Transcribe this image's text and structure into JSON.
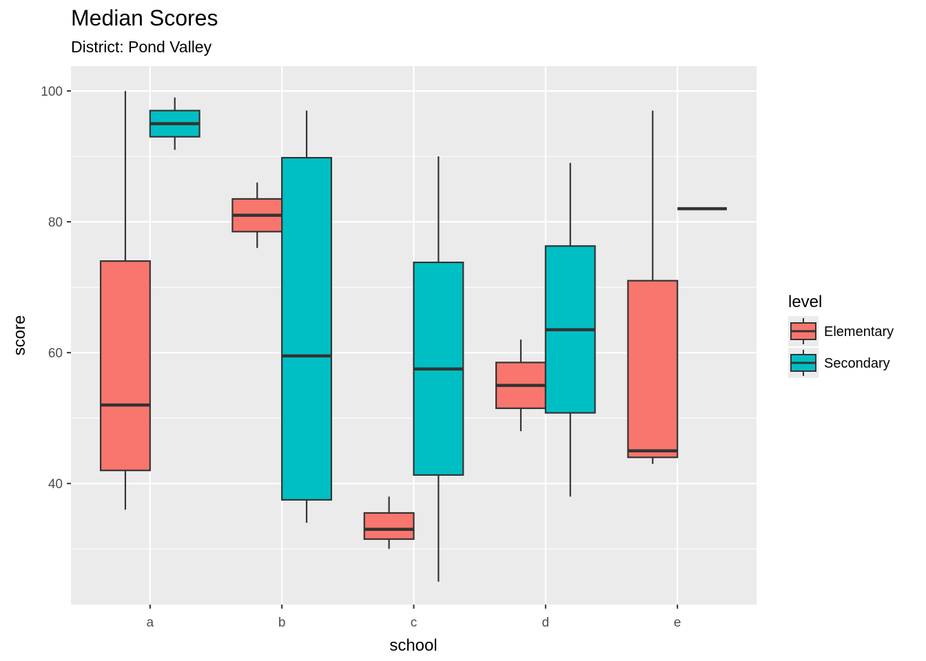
{
  "chart_data": {
    "type": "boxplot",
    "title": "Median Scores",
    "subtitle": "District: Pond Valley",
    "xlabel": "school",
    "ylabel": "score",
    "categories": [
      "a",
      "b",
      "c",
      "d",
      "e"
    ],
    "ylim": [
      21.5,
      103.8
    ],
    "yticks": [
      40,
      60,
      80,
      100
    ],
    "grid": true,
    "legend": {
      "title": "level",
      "position": "right"
    },
    "series": [
      {
        "name": "Elementary",
        "color": "#F8766D",
        "boxes": [
          {
            "category": "a",
            "min": 36,
            "q1": 42,
            "median": 52,
            "q3": 74,
            "max": 100
          },
          {
            "category": "b",
            "min": 76,
            "q1": 78.5,
            "median": 81,
            "q3": 83.5,
            "max": 86
          },
          {
            "category": "c",
            "min": 30,
            "q1": 31.5,
            "median": 33,
            "q3": 35.5,
            "max": 38
          },
          {
            "category": "d",
            "min": 48,
            "q1": 51.5,
            "median": 55,
            "q3": 58.5,
            "max": 62
          },
          {
            "category": "e",
            "min": 43,
            "q1": 44,
            "median": 45,
            "q3": 71,
            "max": 97
          }
        ]
      },
      {
        "name": "Secondary",
        "color": "#00BFC4",
        "boxes": [
          {
            "category": "a",
            "min": 91,
            "q1": 93,
            "median": 95,
            "q3": 97,
            "max": 99
          },
          {
            "category": "b",
            "min": 34,
            "q1": 37.5,
            "median": 59.5,
            "q3": 89.8,
            "max": 97
          },
          {
            "category": "c",
            "min": 25,
            "q1": 41.3,
            "median": 57.5,
            "q3": 73.8,
            "max": 90
          },
          {
            "category": "d",
            "min": 38,
            "q1": 50.8,
            "median": 63.5,
            "q3": 76.3,
            "max": 89
          },
          {
            "category": "e",
            "min": 82,
            "q1": 82,
            "median": 82,
            "q3": 82,
            "max": 82
          }
        ]
      }
    ]
  }
}
